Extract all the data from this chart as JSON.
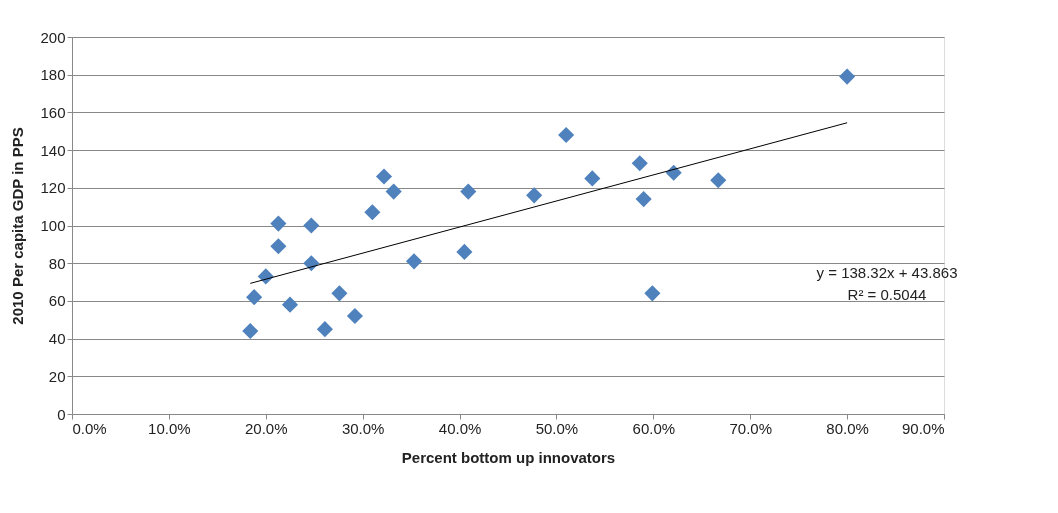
{
  "chart_data": {
    "type": "scatter",
    "xlabel": "Percent bottom up innovators",
    "ylabel": "2010 Per capita GDP in PPS",
    "xlim": [
      0,
      0.9
    ],
    "xticks": [
      {
        "value": 0,
        "label": "0.0%"
      },
      {
        "value": 0.1,
        "label": "10.0%"
      },
      {
        "value": 0.2,
        "label": "20.0%"
      },
      {
        "value": 0.3,
        "label": "30.0%"
      },
      {
        "value": 0.4,
        "label": "40.0%"
      },
      {
        "value": 0.5,
        "label": "50.0%"
      },
      {
        "value": 0.6,
        "label": "60.0%"
      },
      {
        "value": 0.7,
        "label": "70.0%"
      },
      {
        "value": 0.8,
        "label": "80.0%"
      },
      {
        "value": 0.9,
        "label": "90.0%"
      }
    ],
    "ylim": [
      0,
      200
    ],
    "yticks": [
      0,
      20,
      40,
      60,
      80,
      100,
      120,
      140,
      160,
      180,
      200
    ],
    "grid": "y",
    "legend": false,
    "marker": "diamond",
    "annotations": [
      "y = 138.32x + 43.863",
      "R² = 0.5044"
    ],
    "series": [
      {
        "color": "#4f81bd",
        "x": [
          0.184,
          0.188,
          0.2,
          0.213,
          0.213,
          0.225,
          0.247,
          0.247,
          0.261,
          0.276,
          0.292,
          0.31,
          0.322,
          0.332,
          0.353,
          0.405,
          0.409,
          0.477,
          0.51,
          0.537,
          0.586,
          0.59,
          0.599,
          0.621,
          0.667,
          0.8
        ],
        "values": [
          44,
          62,
          73,
          89,
          101,
          58,
          100,
          80,
          45,
          64,
          52,
          107,
          126,
          118,
          81,
          86,
          118,
          116,
          148,
          125,
          133,
          114,
          64,
          128,
          124,
          179
        ]
      },
      {
        "type": "line",
        "marker": "none",
        "color": "#000000",
        "x": [
          0.184,
          0.8
        ],
        "values": [
          69.3,
          154.5
        ]
      }
    ]
  }
}
